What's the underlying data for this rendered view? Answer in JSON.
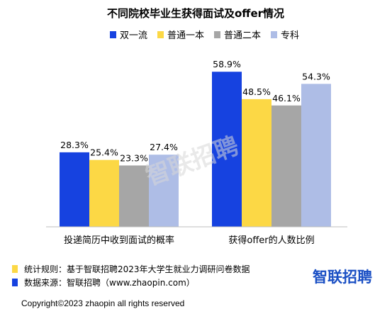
{
  "colors": {
    "double_first_class": "#1642e0",
    "regular_undergrad": "#fcd845",
    "regular_second_tier": "#a6a6a6",
    "vocational": "#aebde6",
    "logo": "#1a4fc4",
    "note_marker": "#fcd845",
    "source_marker": "#1642e0",
    "axis": "#bfbfbf"
  },
  "chart_data": {
    "type": "bar",
    "title": "不同院校毕业生获得面试及offer情况",
    "categories": [
      "投递简历中收到面试的概率",
      "获得offer的人数比例"
    ],
    "series": [
      {
        "name": "双一流",
        "values": [
          28.3,
          58.9
        ],
        "labels": [
          "28.3%",
          "58.9%"
        ]
      },
      {
        "name": "普通一本",
        "values": [
          25.4,
          48.5
        ],
        "labels": [
          "25.4%",
          "48.5%"
        ]
      },
      {
        "name": "普通二本",
        "values": [
          23.3,
          46.1
        ],
        "labels": [
          "23.3%",
          "46.1%"
        ]
      },
      {
        "name": "专科",
        "values": [
          27.4,
          54.3
        ],
        "labels": [
          "27.4%",
          "54.3%"
        ]
      }
    ],
    "ylim": [
      0,
      70
    ],
    "legend": "top",
    "grid": false
  },
  "footer": {
    "note": "统计规则：基于智联招聘2023年大学生就业力调研问卷数据",
    "source": "数据来源：智联招聘（www.zhaopin.com）",
    "copyright": "Copyright©2023 zhaopin all rights reserved",
    "logo_text": "智联招聘"
  },
  "watermark": "智联招聘"
}
